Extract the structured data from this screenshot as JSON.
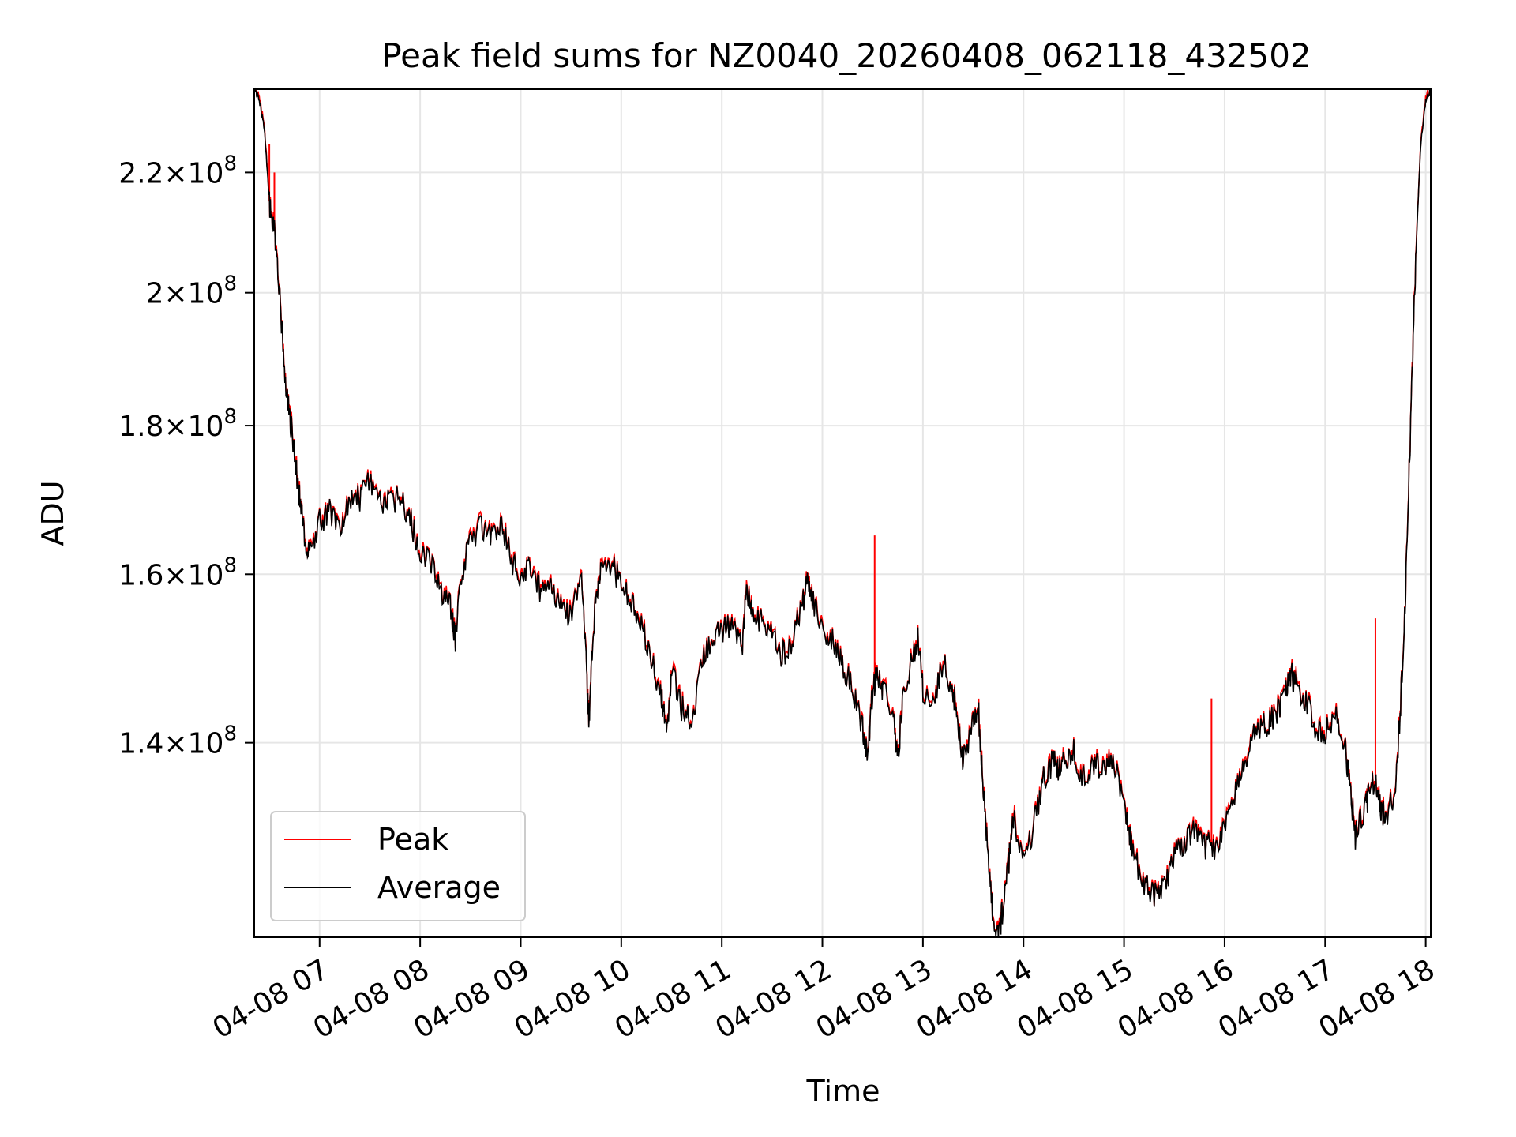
{
  "chart_data": {
    "type": "line",
    "title": "Peak field sums for NZ0040_20260408_062118_432502",
    "xlabel": "Time",
    "ylabel": "ADU",
    "x_unit": "hours (04-08)",
    "xlim": [
      6.35,
      18.05
    ],
    "ylim": [
      120000000.0,
      235000000.0
    ],
    "y_scale": "log",
    "grid": true,
    "legend_position": "lower-left",
    "x_ticks": [
      {
        "value": 7,
        "label": "04-08 07"
      },
      {
        "value": 8,
        "label": "04-08 08"
      },
      {
        "value": 9,
        "label": "04-08 09"
      },
      {
        "value": 10,
        "label": "04-08 10"
      },
      {
        "value": 11,
        "label": "04-08 11"
      },
      {
        "value": 12,
        "label": "04-08 12"
      },
      {
        "value": 13,
        "label": "04-08 13"
      },
      {
        "value": 14,
        "label": "04-08 14"
      },
      {
        "value": 15,
        "label": "04-08 15"
      },
      {
        "value": 16,
        "label": "04-08 16"
      },
      {
        "value": 17,
        "label": "04-08 17"
      },
      {
        "value": 18,
        "label": "04-08 18"
      }
    ],
    "y_ticks": [
      {
        "value": 140000000,
        "mantissa": "1.4",
        "base": "10",
        "exp": "8"
      },
      {
        "value": 160000000,
        "mantissa": "1.6",
        "base": "10",
        "exp": "8"
      },
      {
        "value": 180000000,
        "mantissa": "1.8",
        "base": "10",
        "exp": "8"
      },
      {
        "value": 200000000,
        "mantissa": "2",
        "base": "10",
        "exp": "8"
      },
      {
        "value": 220000000,
        "mantissa": "2.2",
        "base": "10",
        "exp": "8"
      }
    ],
    "series": [
      {
        "name": "Peak",
        "color": "#ff0000",
        "spikes": [
          {
            "x": 6.5,
            "y": 225000000.0
          },
          {
            "x": 6.55,
            "y": 220000000.0
          },
          {
            "x": 12.52,
            "y": 165000000.0
          },
          {
            "x": 15.87,
            "y": 145000000.0
          },
          {
            "x": 17.5,
            "y": 154500000.0
          }
        ]
      },
      {
        "name": "Average",
        "color": "#000000"
      }
    ],
    "x": [
      6.35,
      6.4,
      6.45,
      6.5,
      6.55,
      6.6,
      6.65,
      6.7,
      6.75,
      6.8,
      6.85,
      6.9,
      7.0,
      7.1,
      7.2,
      7.3,
      7.4,
      7.5,
      7.6,
      7.7,
      7.8,
      7.9,
      8.0,
      8.1,
      8.2,
      8.3,
      8.35,
      8.4,
      8.5,
      8.6,
      8.7,
      8.8,
      8.9,
      9.0,
      9.1,
      9.2,
      9.3,
      9.4,
      9.5,
      9.6,
      9.65,
      9.68,
      9.7,
      9.75,
      9.8,
      9.9,
      10.0,
      10.1,
      10.2,
      10.3,
      10.4,
      10.45,
      10.5,
      10.6,
      10.7,
      10.8,
      10.9,
      11.0,
      11.1,
      11.2,
      11.25,
      11.3,
      11.4,
      11.5,
      11.6,
      11.7,
      11.8,
      11.85,
      11.9,
      12.0,
      12.1,
      12.2,
      12.3,
      12.4,
      12.45,
      12.5,
      12.55,
      12.6,
      12.7,
      12.75,
      12.8,
      12.9,
      12.95,
      13.0,
      13.1,
      13.2,
      13.3,
      13.35,
      13.4,
      13.5,
      13.55,
      13.6,
      13.65,
      13.7,
      13.75,
      13.8,
      13.85,
      13.9,
      14.0,
      14.1,
      14.2,
      14.3,
      14.35,
      14.4,
      14.5,
      14.6,
      14.7,
      14.8,
      14.9,
      15.0,
      15.05,
      15.1,
      15.2,
      15.3,
      15.4,
      15.5,
      15.6,
      15.7,
      15.8,
      15.9,
      16.0,
      16.1,
      16.2,
      16.3,
      16.4,
      16.5,
      16.6,
      16.65,
      16.7,
      16.8,
      16.9,
      17.0,
      17.1,
      17.2,
      17.25,
      17.3,
      17.4,
      17.45,
      17.5,
      17.55,
      17.6,
      17.7,
      17.75,
      17.8,
      17.85,
      17.9,
      17.95,
      18.0,
      18.05
    ],
    "average": [
      235000000.0,
      233000000.0,
      228000000.0,
      215000000.0,
      210000000.0,
      200000000.0,
      188000000.0,
      182000000.0,
      176000000.0,
      170000000.0,
      165000000.0,
      162000000.0,
      167000000.0,
      168000000.0,
      165000000.0,
      170000000.0,
      170000000.0,
      172000000.0,
      170000000.0,
      169000000.0,
      170000000.0,
      167000000.0,
      163000000.0,
      162000000.0,
      158000000.0,
      156000000.0,
      152000000.0,
      160000000.0,
      164000000.0,
      166000000.0,
      165000000.0,
      167000000.0,
      162000000.0,
      159000000.0,
      161000000.0,
      158000000.0,
      159000000.0,
      156000000.0,
      155000000.0,
      160000000.0,
      149000000.0,
      142000000.0,
      148000000.0,
      158000000.0,
      160000000.0,
      161000000.0,
      159000000.0,
      156000000.0,
      154000000.0,
      150000000.0,
      145000000.0,
      141000000.0,
      148000000.0,
      144000000.0,
      142000000.0,
      150000000.0,
      152000000.0,
      153000000.0,
      154000000.0,
      151000000.0,
      158000000.0,
      155000000.0,
      154000000.0,
      153000000.0,
      150000000.0,
      152000000.0,
      156000000.0,
      159000000.0,
      157000000.0,
      153000000.0,
      152000000.0,
      149000000.0,
      146000000.0,
      142000000.0,
      138000000.0,
      146000000.0,
      148000000.0,
      146000000.0,
      143000000.0,
      138000000.0,
      145000000.0,
      150000000.0,
      152000000.0,
      146000000.0,
      144000000.0,
      149000000.0,
      146000000.0,
      142000000.0,
      138000000.0,
      142000000.0,
      144000000.0,
      135000000.0,
      128000000.0,
      121000000.0,
      120000000.0,
      123000000.0,
      127000000.0,
      132000000.0,
      127000000.0,
      131000000.0,
      136000000.0,
      138000000.0,
      137000000.0,
      138000000.0,
      139000000.0,
      136000000.0,
      138000000.0,
      137000000.0,
      138000000.0,
      134000000.0,
      130000000.0,
      128000000.0,
      125000000.0,
      124000000.0,
      125000000.0,
      128000000.0,
      129000000.0,
      131000000.0,
      129000000.0,
      129000000.0,
      131000000.0,
      134000000.0,
      138000000.0,
      141000000.0,
      142000000.0,
      143000000.0,
      145000000.0,
      148000000.0,
      147000000.0,
      145000000.0,
      142000000.0,
      141000000.0,
      143000000.0,
      139000000.0,
      135000000.0,
      130000000.0,
      133000000.0,
      135000000.0,
      136000000.0,
      133000000.0,
      132000000.0,
      135000000.0,
      144000000.0,
      158000000.0,
      180000000.0,
      205000000.0,
      225000000.0,
      233000000.0,
      235000000.0
    ]
  }
}
